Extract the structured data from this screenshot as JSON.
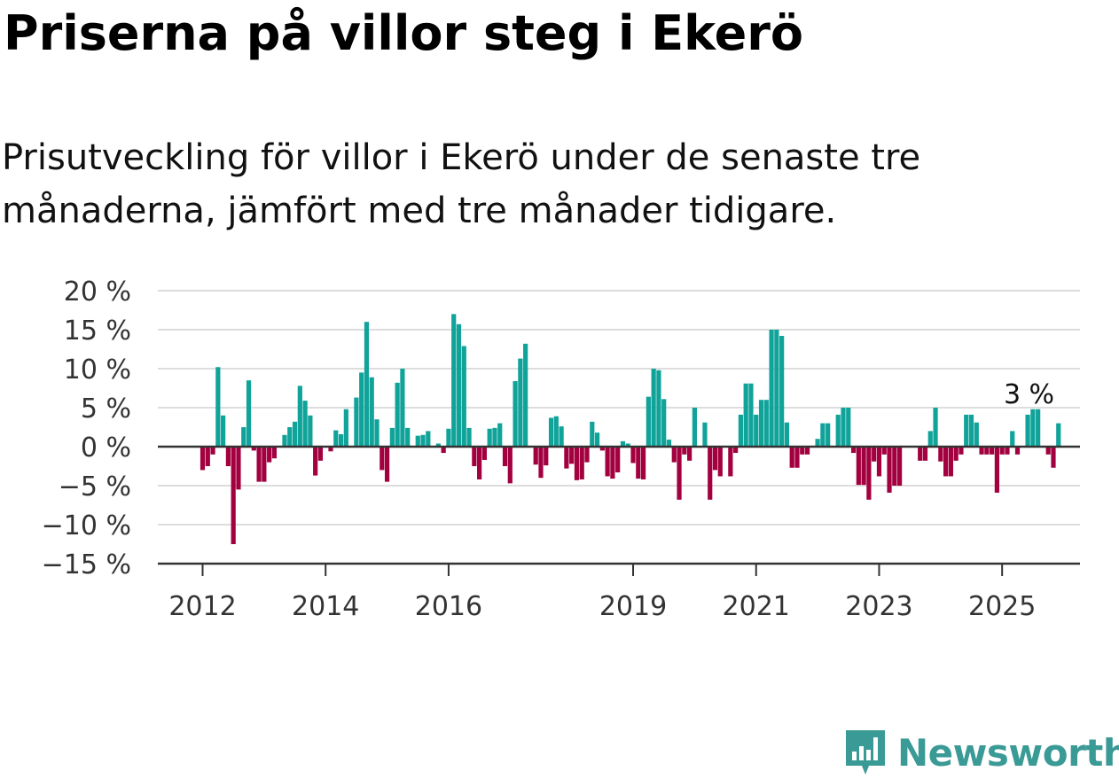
{
  "title": "Priserna på villor steg i Ekerö",
  "subtitle": "Prisutveckling för villor i Ekerö under de senaste tre månaderna, jämfört med tre månader tidigare.",
  "brand": {
    "name": "Newsworthy",
    "color": "#3A9A95"
  },
  "colors": {
    "positive": "#10A39A",
    "negative": "#A3003F",
    "grid": "#dddddd",
    "zero_line": "#333333"
  },
  "chart_data": {
    "type": "bar",
    "x_start": "2012-01",
    "x_end": "2025-06",
    "ylim": [
      -15,
      20
    ],
    "yticks": [
      20,
      15,
      10,
      5,
      0,
      -5,
      -10,
      -15
    ],
    "ytick_labels": [
      "20 %",
      "15 %",
      "10 %",
      "5 %",
      "0 %",
      "−5 %",
      "−10 %",
      "−15 %"
    ],
    "xticks": [
      "2012",
      "2014",
      "2016",
      "2019",
      "2021",
      "2023",
      "2025"
    ],
    "annotation": {
      "label": "3 %",
      "x": "2025-06",
      "value": 3
    },
    "series": [
      {
        "values": [
          -3,
          -2.5,
          -1,
          10.2,
          4,
          -2.5,
          -12.5,
          -5.5,
          2.5,
          8.5,
          -0.5,
          -4.5,
          -4.5,
          -2,
          -1.5,
          0,
          1.5,
          2.5,
          3.2,
          7.8,
          5.9,
          4,
          -3.7,
          -1.8,
          0,
          -0.6,
          2.1,
          1.6,
          4.8,
          0,
          6.3,
          9.5,
          16,
          8.9,
          3.5,
          -3,
          -4.5,
          2.4,
          8.2,
          10,
          2.4,
          0,
          1.4,
          1.5,
          2,
          0,
          0.4,
          -0.8,
          2.3,
          17,
          15.7,
          12.9,
          2.4,
          -2.5,
          -4.2,
          -1.7,
          2.3,
          2.4,
          3,
          -2.5,
          -4.7,
          8.4,
          11.3,
          13.2,
          0,
          -2.3,
          -4,
          -2.4,
          3.7,
          3.9,
          2.6,
          -2.8,
          -2.2,
          -4.3,
          -4.2,
          -2,
          3.2,
          1.8,
          -0.5,
          -3.8,
          -4.1,
          -3.3,
          0.7,
          0.4,
          -2.1,
          -4.1,
          -4.2,
          6.4,
          10,
          9.8,
          6.1,
          0.9,
          -2,
          -6.8,
          -1,
          -1.8,
          5,
          0,
          3.1,
          -6.8,
          -3,
          -3.8,
          0,
          -3.8,
          -0.8,
          4.1,
          8.1,
          8.1,
          4.1,
          6,
          6,
          15,
          15,
          14.2,
          3.1,
          -2.7,
          -2.7,
          -1,
          -1,
          0,
          1,
          3,
          3,
          0,
          4.1,
          5,
          5,
          -0.8,
          -4.9,
          -4.9,
          -6.8,
          -1.9,
          -3.8,
          -1,
          -5.9,
          -5,
          -5,
          0,
          0,
          0,
          -1.8,
          -1.8,
          2,
          5,
          -1.9,
          -3.8,
          -3.8,
          -1.8,
          -1,
          4.1,
          4.1,
          3.1,
          -1,
          -1,
          -1,
          -5.9,
          -1,
          -1,
          2,
          -1,
          0,
          4.1,
          4.8,
          4.8,
          0,
          -1,
          -2.7,
          3
        ]
      }
    ]
  }
}
